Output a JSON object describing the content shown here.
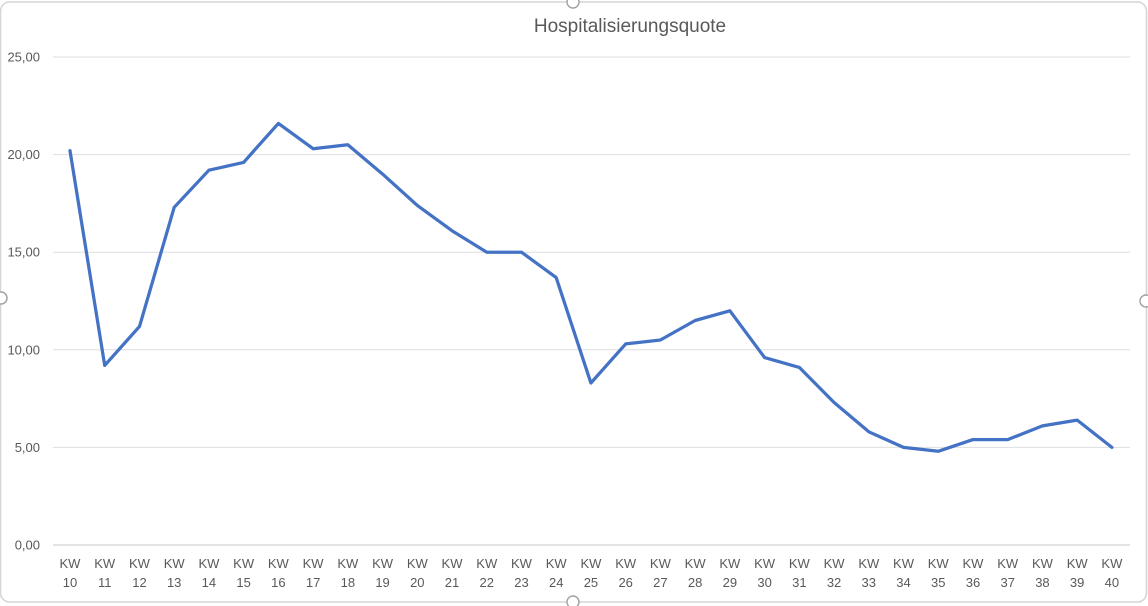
{
  "chart_data": {
    "type": "line",
    "title": "Hospitalisierungsquote",
    "categories": [
      "KW 10",
      "KW 11",
      "KW 12",
      "KW 13",
      "KW 14",
      "KW 15",
      "KW 16",
      "KW 17",
      "KW 18",
      "KW 19",
      "KW 20",
      "KW 21",
      "KW 22",
      "KW 23",
      "KW 24",
      "KW 25",
      "KW 26",
      "KW 27",
      "KW 28",
      "KW 29",
      "KW 30",
      "KW 31",
      "KW 32",
      "KW 33",
      "KW 34",
      "KW 35",
      "KW 36",
      "KW 37",
      "KW 38",
      "KW 39",
      "KW 40"
    ],
    "values": [
      20.2,
      9.2,
      11.2,
      17.3,
      19.2,
      19.6,
      21.6,
      20.3,
      20.5,
      19.0,
      17.4,
      16.1,
      15.0,
      15.0,
      13.7,
      8.3,
      10.3,
      10.5,
      11.5,
      12.0,
      9.6,
      9.1,
      7.3,
      5.8,
      5.0,
      4.8,
      5.4,
      5.4,
      6.1,
      6.4,
      5.0
    ],
    "ylim": [
      0,
      25
    ],
    "ytick_step": 5,
    "ytick_labels": [
      "0,00",
      "5,00",
      "10,00",
      "15,00",
      "20,00",
      "25,00"
    ],
    "grid": true,
    "legend": "none",
    "colors": {
      "line": "#4472C4",
      "gridline": "#DEDEDE",
      "axis_line": "#C9C9C9",
      "tick_text": "#595959",
      "title_text": "#595959",
      "chart_border": "#D6D6D6",
      "handle_stroke": "#A0A0A0",
      "background": "#FFFFFF"
    }
  }
}
